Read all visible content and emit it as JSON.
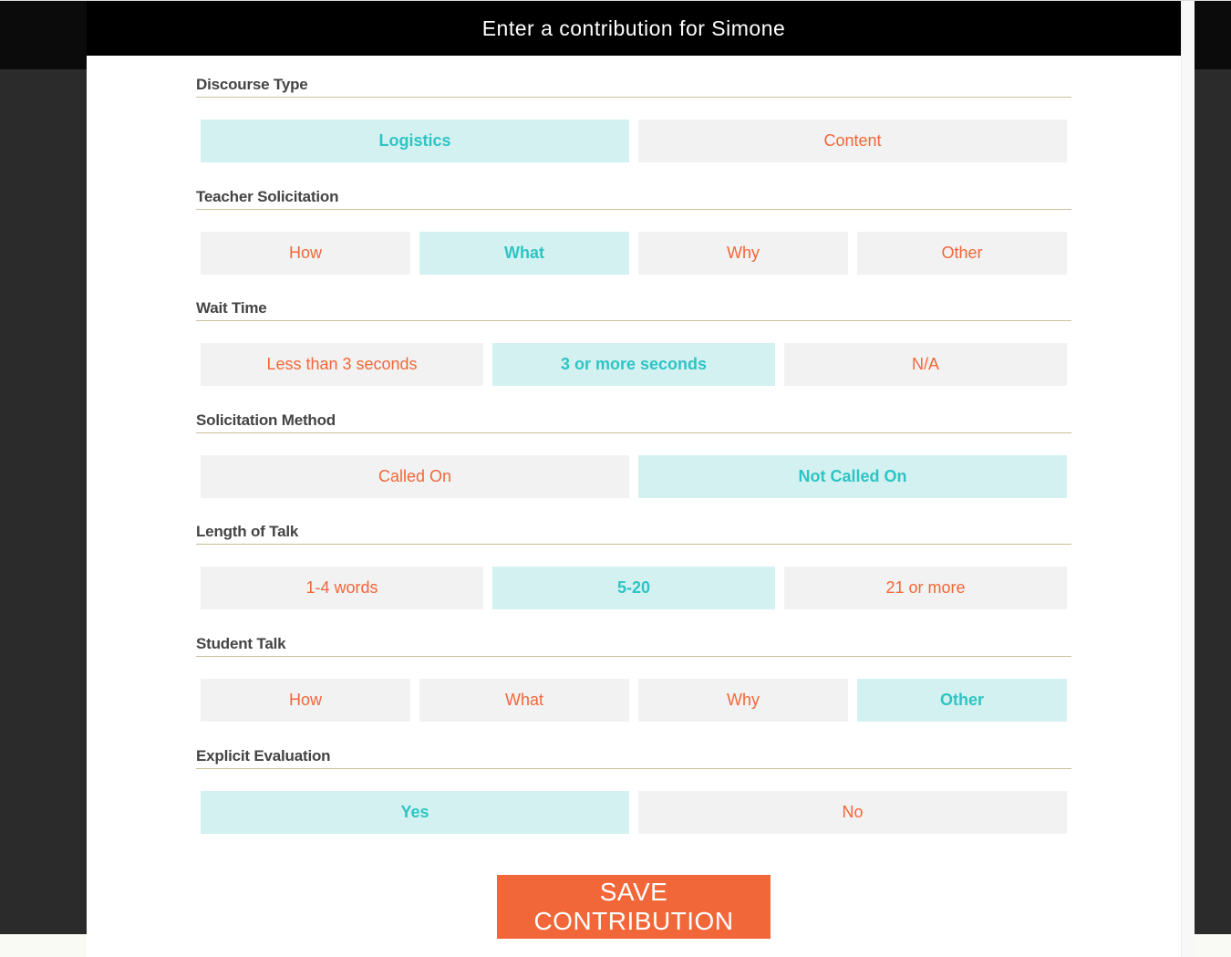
{
  "title": "Enter a contribution for Simone",
  "colors": {
    "selected_bg": "#d4f1f1",
    "selected_text": "#2ec4c4",
    "option_text": "#f26739",
    "save_button": "#f26739"
  },
  "sections": [
    {
      "label": "Discourse Type",
      "options": [
        "Logistics",
        "Content"
      ],
      "selected": 0
    },
    {
      "label": "Teacher Solicitation",
      "options": [
        "How",
        "What",
        "Why",
        "Other"
      ],
      "selected": 1
    },
    {
      "label": "Wait Time",
      "options": [
        "Less than 3 seconds",
        "3 or more seconds",
        "N/A"
      ],
      "selected": 1
    },
    {
      "label": "Solicitation Method",
      "options": [
        "Called On",
        "Not Called On"
      ],
      "selected": 1
    },
    {
      "label": "Length of Talk",
      "options": [
        "1-4 words",
        "5-20",
        "21 or more"
      ],
      "selected": 1
    },
    {
      "label": "Student Talk",
      "options": [
        "How",
        "What",
        "Why",
        "Other"
      ],
      "selected": 3
    },
    {
      "label": "Explicit Evaluation",
      "options": [
        "Yes",
        "No"
      ],
      "selected": 0
    }
  ],
  "save_label": "SAVE CONTRIBUTION"
}
